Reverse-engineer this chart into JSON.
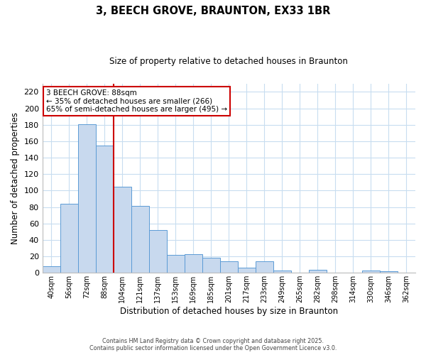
{
  "title": "3, BEECH GROVE, BRAUNTON, EX33 1BR",
  "subtitle": "Size of property relative to detached houses in Braunton",
  "xlabel": "Distribution of detached houses by size in Braunton",
  "ylabel": "Number of detached properties",
  "bar_color": "#c8d9ee",
  "bar_edge_color": "#5b9bd5",
  "categories": [
    "40sqm",
    "56sqm",
    "72sqm",
    "88sqm",
    "104sqm",
    "121sqm",
    "137sqm",
    "153sqm",
    "169sqm",
    "185sqm",
    "201sqm",
    "217sqm",
    "233sqm",
    "249sqm",
    "265sqm",
    "282sqm",
    "298sqm",
    "314sqm",
    "330sqm",
    "346sqm",
    "362sqm"
  ],
  "values": [
    8,
    84,
    181,
    155,
    105,
    81,
    52,
    22,
    23,
    18,
    14,
    6,
    14,
    3,
    0,
    4,
    0,
    0,
    3,
    2,
    0
  ],
  "ylim": [
    0,
    230
  ],
  "yticks": [
    0,
    20,
    40,
    60,
    80,
    100,
    120,
    140,
    160,
    180,
    200,
    220
  ],
  "vline_color": "#cc0000",
  "annotation_title": "3 BEECH GROVE: 88sqm",
  "annotation_line1": "← 35% of detached houses are smaller (266)",
  "annotation_line2": "65% of semi-detached houses are larger (495) →",
  "annotation_box_edge": "#cc0000",
  "footer_line1": "Contains HM Land Registry data © Crown copyright and database right 2025.",
  "footer_line2": "Contains public sector information licensed under the Open Government Licence v3.0.",
  "background_color": "#ffffff",
  "grid_color": "#c8ddf0"
}
